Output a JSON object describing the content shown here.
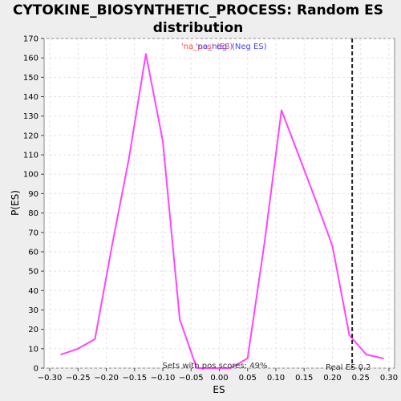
{
  "chart_data": {
    "type": "line",
    "title_line1": "CYTOKINE_BIOSYNTHETIC_PROCESS: Random ES",
    "title_line2": "distribution",
    "xlabel": "ES",
    "ylabel": "P(ES)",
    "xlim": [
      -0.31,
      0.31
    ],
    "ylim": [
      0,
      170
    ],
    "xticks": [
      -0.3,
      -0.25,
      -0.2,
      -0.15,
      -0.1,
      -0.05,
      0.0,
      0.05,
      0.1,
      0.15,
      0.2,
      0.25,
      0.3
    ],
    "xtick_labels": [
      "−0.30",
      "−0.25",
      "−0.20",
      "−0.15",
      "−0.10",
      "−0.05",
      "0.00",
      "0.05",
      "0.10",
      "0.15",
      "0.20",
      "0.25",
      "0.30"
    ],
    "yticks": [
      0,
      10,
      20,
      30,
      40,
      50,
      60,
      70,
      80,
      90,
      100,
      110,
      120,
      130,
      140,
      150,
      160,
      170
    ],
    "grid": true,
    "series": [
      {
        "color": "#ff44ff",
        "x": [
          -0.28,
          -0.25,
          -0.22,
          -0.19,
          -0.16,
          -0.13,
          -0.1,
          -0.07,
          -0.04,
          -0.01,
          0.02,
          0.05,
          0.08,
          0.11,
          0.14,
          0.17,
          0.2,
          0.23,
          0.26,
          0.29
        ],
        "y": [
          7,
          10,
          15,
          63,
          108,
          162,
          117,
          25,
          0,
          0,
          0,
          5,
          65,
          133,
          110,
          87,
          63,
          17,
          7,
          5
        ]
      }
    ],
    "legend": [
      {
        "text": "'na_pos' (ES)",
        "color": "#ff4444"
      },
      {
        "text": "'na_neg' (Neg ES)",
        "color": "#4444ff"
      }
    ],
    "real_es": {
      "x": 0.235,
      "label": "Real ES 0.2"
    },
    "pos_scores_label": "Sets with pos scores: 49%"
  }
}
